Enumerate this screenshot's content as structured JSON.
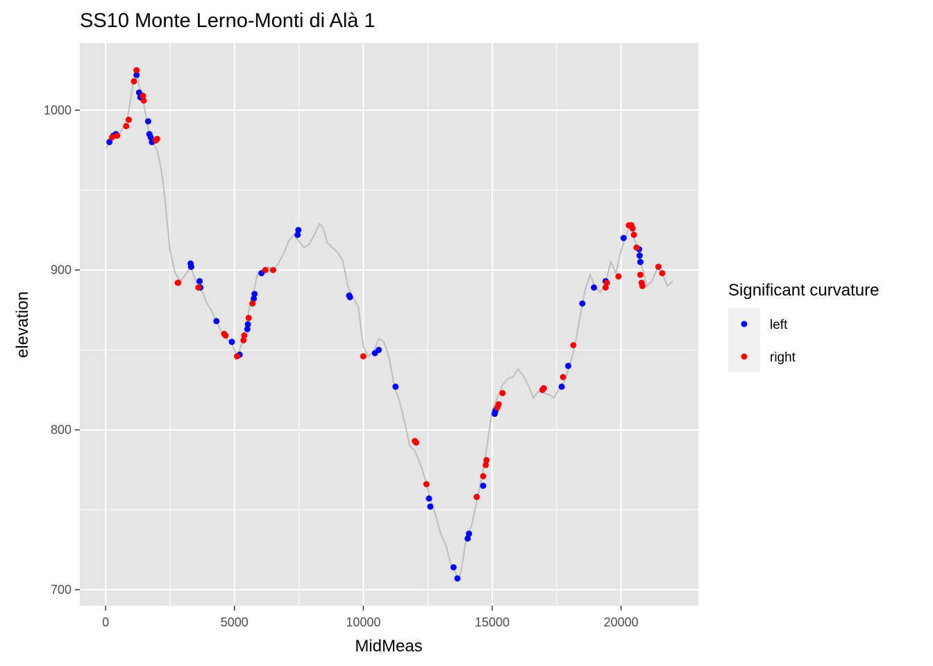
{
  "chart_data": {
    "type": "scatter",
    "title": "SS10 Monte Lerno-Monti di Alà 1",
    "xlabel": "MidMeas",
    "ylabel": "elevation",
    "xlim": [
      -1000,
      23000
    ],
    "ylim": [
      690,
      1042
    ],
    "x_ticks": [
      0,
      5000,
      10000,
      15000,
      20000
    ],
    "x_tick_labels": [
      "0",
      "5000",
      "10000",
      "15000",
      "20000"
    ],
    "y_ticks": [
      700,
      800,
      900,
      1000
    ],
    "y_tick_labels": [
      "700",
      "800",
      "900",
      "1000"
    ],
    "grid": true,
    "legend": {
      "title": "Significant curvature",
      "position": "right",
      "entries": [
        {
          "label": "left",
          "color": "#0000ff"
        },
        {
          "label": "right",
          "color": "#ff0000"
        }
      ]
    },
    "colors": {
      "panel": "#e5e5e5",
      "grid": "#ffffff",
      "profile": "#bebebe",
      "left": "#0000ff",
      "right": "#ff0000"
    },
    "profile": {
      "x": [
        0,
        150,
        300,
        500,
        700,
        850,
        1000,
        1100,
        1200,
        1300,
        1450,
        1600,
        1700,
        1800,
        1900,
        2000,
        2100,
        2200,
        2300,
        2500,
        2700,
        2900,
        3100,
        3300,
        3500,
        3700,
        3800,
        3900,
        4100,
        4300,
        4500,
        4700,
        4900,
        5050,
        5150,
        5300,
        5450,
        5600,
        5750,
        5900,
        6100,
        6300,
        6500,
        6700,
        6900,
        7100,
        7300,
        7500,
        7700,
        7900,
        8100,
        8300,
        8450,
        8600,
        8800,
        9000,
        9200,
        9400,
        9600,
        9800,
        10000,
        10200,
        10400,
        10600,
        10800,
        11000,
        11200,
        11400,
        11600,
        11800,
        12000,
        12200,
        12400,
        12600,
        12800,
        13000,
        13200,
        13400,
        13600,
        13700,
        13800,
        14000,
        14200,
        14400,
        14600,
        14800,
        15000,
        15200,
        15400,
        15600,
        15800,
        16000,
        16200,
        16400,
        16600,
        16800,
        17000,
        17200,
        17400,
        17600,
        17800,
        18000,
        18200,
        18400,
        18600,
        18800,
        19000,
        19200,
        19400,
        19600,
        19800,
        20000,
        20200,
        20350,
        20500,
        20650,
        20750,
        20850,
        21000,
        21200,
        21400,
        21600,
        21800,
        22000
      ],
      "y": [
        976,
        980,
        984,
        984,
        990,
        995,
        1010,
        1020,
        1025,
        1015,
        1007,
        993,
        983,
        980,
        978,
        975,
        968,
        958,
        945,
        912,
        898,
        893,
        897,
        902,
        893,
        887,
        885,
        880,
        875,
        868,
        861,
        857,
        854,
        848,
        847,
        855,
        865,
        878,
        887,
        898,
        900,
        902,
        900,
        904,
        910,
        918,
        922,
        918,
        914,
        916,
        922,
        929,
        926,
        917,
        914,
        911,
        906,
        890,
        883,
        877,
        852,
        846,
        849,
        857,
        855,
        845,
        828,
        818,
        805,
        790,
        787,
        779,
        769,
        757,
        747,
        735,
        728,
        716,
        710,
        707,
        712,
        733,
        740,
        755,
        770,
        790,
        812,
        820,
        828,
        832,
        833,
        838,
        834,
        828,
        820,
        824,
        823,
        822,
        820,
        826,
        830,
        840,
        852,
        870,
        887,
        897,
        889,
        886,
        892,
        905,
        898,
        912,
        922,
        928,
        920,
        913,
        905,
        900,
        890,
        893,
        901,
        898,
        890,
        893
      ]
    },
    "series": [
      {
        "name": "left",
        "color": "#0000ff",
        "points": [
          [
            150,
            980
          ],
          [
            300,
            984
          ],
          [
            400,
            985
          ],
          [
            1200,
            1022
          ],
          [
            1300,
            1011
          ],
          [
            1350,
            1008
          ],
          [
            1650,
            993
          ],
          [
            1700,
            985
          ],
          [
            1750,
            983
          ],
          [
            1800,
            980
          ],
          [
            3300,
            904
          ],
          [
            3320,
            902
          ],
          [
            3650,
            893
          ],
          [
            3680,
            889
          ],
          [
            4300,
            868
          ],
          [
            4900,
            855
          ],
          [
            5200,
            847
          ],
          [
            5500,
            863
          ],
          [
            5520,
            866
          ],
          [
            5750,
            882
          ],
          [
            5780,
            885
          ],
          [
            6050,
            898
          ],
          [
            7450,
            922
          ],
          [
            7480,
            925
          ],
          [
            9450,
            884
          ],
          [
            9480,
            883
          ],
          [
            10450,
            848
          ],
          [
            10600,
            850
          ],
          [
            11250,
            827
          ],
          [
            12550,
            757
          ],
          [
            12600,
            752
          ],
          [
            13500,
            714
          ],
          [
            13650,
            707
          ],
          [
            14050,
            732
          ],
          [
            14100,
            735
          ],
          [
            14650,
            765
          ],
          [
            15100,
            810
          ],
          [
            15130,
            812
          ],
          [
            17000,
            826
          ],
          [
            17700,
            827
          ],
          [
            17950,
            840
          ],
          [
            18500,
            879
          ],
          [
            18950,
            889
          ],
          [
            19400,
            893
          ],
          [
            20100,
            920
          ],
          [
            20700,
            913
          ],
          [
            20720,
            909
          ],
          [
            20750,
            905
          ]
        ]
      },
      {
        "name": "right",
        "color": "#ff0000",
        "points": [
          [
            250,
            983
          ],
          [
            450,
            984
          ],
          [
            800,
            990
          ],
          [
            900,
            994
          ],
          [
            1100,
            1018
          ],
          [
            1200,
            1025
          ],
          [
            1450,
            1009
          ],
          [
            1480,
            1006
          ],
          [
            1950,
            981
          ],
          [
            2000,
            982
          ],
          [
            2800,
            892
          ],
          [
            2820,
            892
          ],
          [
            3600,
            889
          ],
          [
            4600,
            860
          ],
          [
            4650,
            859
          ],
          [
            5100,
            846
          ],
          [
            5350,
            856
          ],
          [
            5380,
            859
          ],
          [
            5550,
            870
          ],
          [
            5700,
            879
          ],
          [
            6200,
            900
          ],
          [
            6500,
            900
          ],
          [
            10000,
            846
          ],
          [
            12000,
            793
          ],
          [
            12050,
            792
          ],
          [
            12450,
            766
          ],
          [
            14400,
            758
          ],
          [
            14650,
            771
          ],
          [
            14750,
            778
          ],
          [
            14780,
            781
          ],
          [
            15200,
            814
          ],
          [
            15250,
            816
          ],
          [
            15400,
            823
          ],
          [
            16950,
            825
          ],
          [
            17000,
            826
          ],
          [
            17750,
            833
          ],
          [
            18150,
            853
          ],
          [
            19400,
            889
          ],
          [
            19450,
            892
          ],
          [
            19900,
            896
          ],
          [
            20300,
            928
          ],
          [
            20400,
            928
          ],
          [
            20450,
            926
          ],
          [
            20500,
            922
          ],
          [
            20600,
            914
          ],
          [
            20750,
            897
          ],
          [
            20800,
            892
          ],
          [
            20830,
            890
          ],
          [
            21450,
            902
          ],
          [
            21600,
            898
          ]
        ]
      }
    ]
  }
}
